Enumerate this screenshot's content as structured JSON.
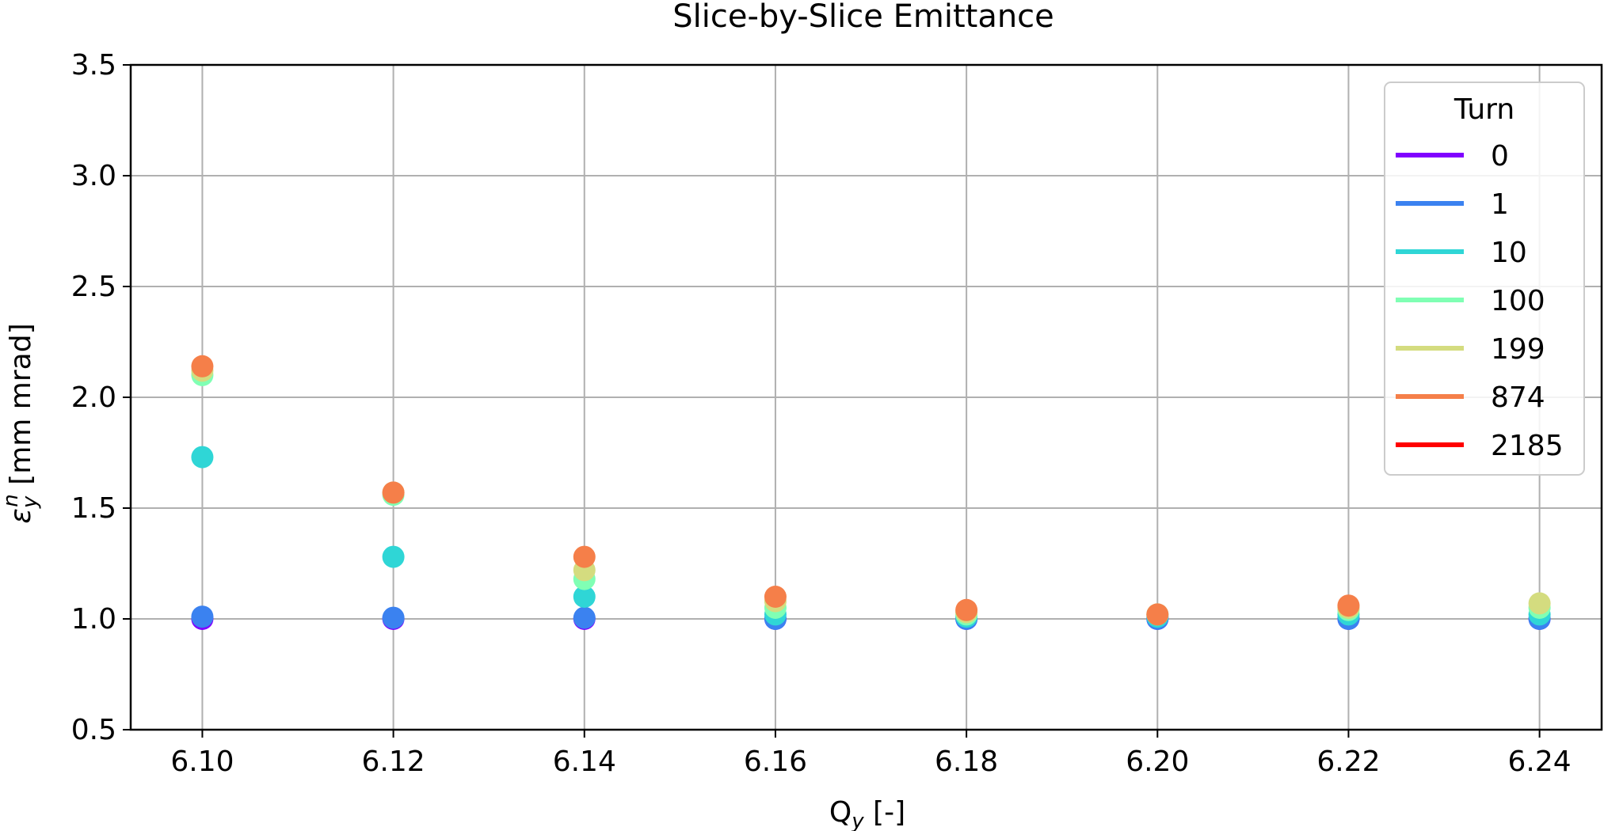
{
  "chart_data": {
    "type": "scatter",
    "title": "Slice-by-Slice Emittance",
    "xlabel": {
      "main": "Q",
      "sub": "y",
      "suffix": " [-]"
    },
    "ylabel": {
      "main": "ε",
      "sub": "y",
      "sup": "n",
      "suffix": " [mm mrad]"
    },
    "xlim": [
      6.0925,
      6.2465
    ],
    "ylim": [
      0.5,
      3.5
    ],
    "xticks": [
      6.1,
      6.12,
      6.14,
      6.16,
      6.18,
      6.2,
      6.22,
      6.24
    ],
    "xtick_labels": [
      "6.10",
      "6.12",
      "6.14",
      "6.16",
      "6.18",
      "6.20",
      "6.22",
      "6.24"
    ],
    "yticks": [
      0.5,
      1.0,
      1.5,
      2.0,
      2.5,
      3.0,
      3.5
    ],
    "ytick_labels": [
      "0.5",
      "1.0",
      "1.5",
      "2.0",
      "2.5",
      "3.0",
      "3.5"
    ],
    "grid": true,
    "legend": {
      "title": "Turn",
      "placement": "top-right"
    },
    "x": [
      6.1,
      6.12,
      6.14,
      6.16,
      6.18,
      6.2,
      6.22,
      6.24
    ],
    "series": [
      {
        "name": "0",
        "color": "#8000ff",
        "values": [
          1.0,
          1.0,
          1.0,
          1.0,
          1.0,
          1.0,
          1.0,
          1.0
        ]
      },
      {
        "name": "1",
        "color": "#3b82f0",
        "values": [
          1.01,
          1.005,
          1.005,
          1.0,
          1.0,
          1.0,
          1.0,
          1.0
        ]
      },
      {
        "name": "10",
        "color": "#2fd6d6",
        "values": [
          1.73,
          1.28,
          1.1,
          1.02,
          1.01,
          1.01,
          1.02,
          1.02
        ]
      },
      {
        "name": "100",
        "color": "#80ffb4",
        "values": [
          2.1,
          1.56,
          1.18,
          1.05,
          1.02,
          1.02,
          1.04,
          1.05
        ]
      },
      {
        "name": "199",
        "color": "#d4dc7f",
        "values": [
          2.12,
          1.57,
          1.22,
          1.08,
          1.03,
          1.02,
          1.05,
          1.07
        ]
      },
      {
        "name": "874",
        "color": "#f57f49",
        "values": [
          2.14,
          1.57,
          1.28,
          1.1,
          1.04,
          1.02,
          1.06,
          null
        ]
      },
      {
        "name": "2185",
        "color": "#ff0000",
        "values": []
      }
    ]
  }
}
